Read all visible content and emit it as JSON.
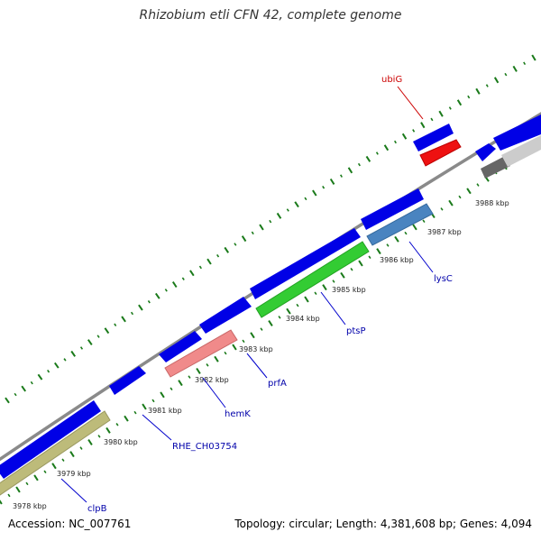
{
  "title": "Rhizobium etli CFN 42, complete genome",
  "accession_text": "Accession: NC_007761",
  "summary_text": "Topology: circular; Length: 4,381,608 bp; Genes: 4,094",
  "colors": {
    "backbone": "#8a8a8a",
    "tick": "#1a7a1a",
    "forward_gene": "#0000e6",
    "label_line": "#0000cc",
    "rna_label": "#cc0000",
    "rna_line": "#cc0000"
  },
  "scale_labels": [
    "3978 kbp",
    "3979 kbp",
    "3980 kbp",
    "3981 kbp",
    "3982 kbp",
    "3983 kbp",
    "3984 kbp",
    "3985 kbp",
    "3986 kbp",
    "3987 kbp",
    "3988 kbp"
  ],
  "gene_labels": [
    {
      "name": "clpB",
      "color": "#0000aa"
    },
    {
      "name": "RHE_CH03754",
      "color": "#0000aa"
    },
    {
      "name": "hemK",
      "color": "#0000aa"
    },
    {
      "name": "prfA",
      "color": "#0000aa"
    },
    {
      "name": "ptsP",
      "color": "#0000aa"
    },
    {
      "name": "lysC",
      "color": "#0000aa"
    },
    {
      "name": "ubiG",
      "color": "#cc0000"
    }
  ],
  "cog_colors": {
    "clpB": "#bdbb7a",
    "hemK": "#f08a8a",
    "ptsP": "#33cc33",
    "lysC": "#4a84c0",
    "ubiG": "#ee1111",
    "grey_dark": "#666666",
    "grey_light": "#cccccc"
  }
}
